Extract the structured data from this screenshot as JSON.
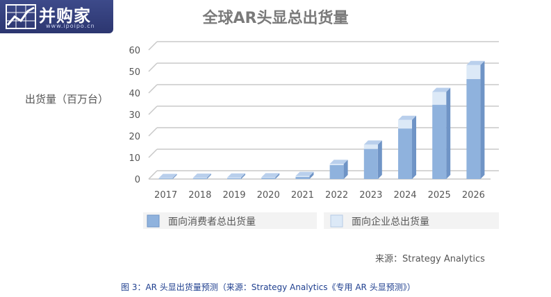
{
  "logo": {
    "name": "并购家",
    "url": "www.ipoipo.cn"
  },
  "colors": {
    "consumer_front": "#8fb2dd",
    "consumer_top": "#b9cfec",
    "consumer_side": "#6f94c6",
    "enterprise_front": "#dce9f7",
    "enterprise_side": "#b6cbe6",
    "grid": "#c8c8c8"
  },
  "chart_data": {
    "type": "bar",
    "title": "全球AR头显总出货量",
    "ylabel": "出货量（百万台）",
    "xlabel": "",
    "ylim": [
      0,
      60
    ],
    "yticks": [
      0,
      10,
      20,
      30,
      40,
      50,
      60
    ],
    "categories": [
      "2017",
      "2018",
      "2019",
      "2020",
      "2021",
      "2022",
      "2023",
      "2024",
      "2025",
      "2026"
    ],
    "stacked": true,
    "series": [
      {
        "name": "面向消费者总出货量",
        "values": [
          0.3,
          0.4,
          0.4,
          0.5,
          1.0,
          6.5,
          14,
          23.5,
          34.5,
          46.5
        ]
      },
      {
        "name": "面向企业总出货量",
        "values": [
          0.2,
          0.2,
          0.3,
          0.3,
          0.4,
          0.5,
          2,
          4,
          6,
          6.5
        ]
      }
    ],
    "legend": "bottom",
    "grid": true
  },
  "source": "来源：Strategy Analytics",
  "caption": "图 3：AR 头显出货量预测（来源：Strategy Analytics《专用 AR 头显预测》）"
}
